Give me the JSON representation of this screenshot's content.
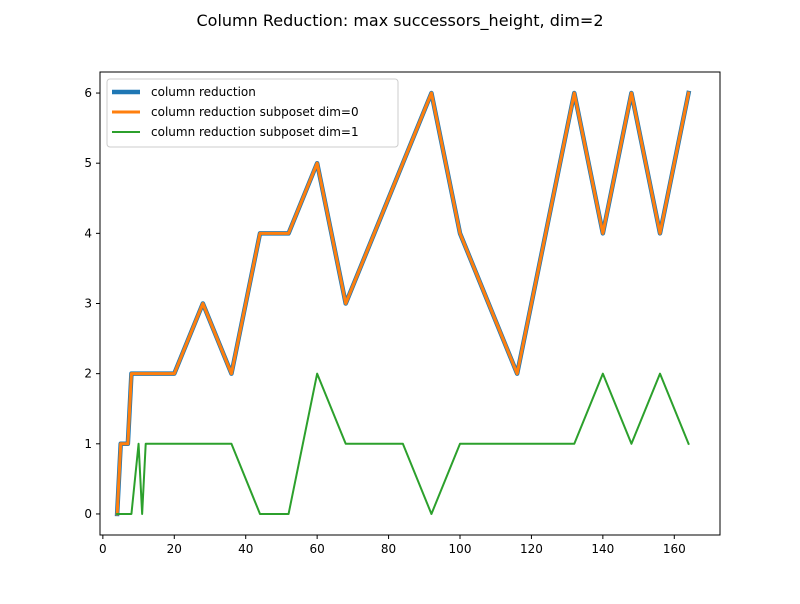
{
  "chart_data": {
    "type": "line",
    "title": "Column Reduction: max successors_height, dim=2",
    "xlabel": "",
    "ylabel": "",
    "xlim": [
      -0.8,
      172.8
    ],
    "ylim": [
      -0.3,
      6.3
    ],
    "xticks": [
      0,
      20,
      40,
      60,
      80,
      100,
      120,
      140,
      160
    ],
    "yticks": [
      0,
      1,
      2,
      3,
      4,
      5,
      6
    ],
    "grid": false,
    "legend": "top-left",
    "series": [
      {
        "name": "column reduction",
        "color": "#1f77b4",
        "width": 4.5,
        "x": [
          4,
          5,
          7,
          8,
          10,
          12,
          20,
          28,
          36,
          44,
          52,
          60,
          68,
          76,
          84,
          92,
          100,
          108,
          116,
          124,
          132,
          140,
          148,
          156,
          164
        ],
        "y": [
          0,
          1,
          1,
          2,
          2,
          2,
          2,
          3,
          2,
          4,
          4,
          5,
          3,
          4,
          5,
          6,
          4,
          3,
          2,
          4,
          6,
          4,
          6,
          4,
          6
        ]
      },
      {
        "name": "column reduction subposet dim=0",
        "color": "#ff7f0e",
        "width": 3,
        "x": [
          4,
          5,
          7,
          8,
          10,
          12,
          20,
          28,
          36,
          44,
          52,
          60,
          68,
          76,
          84,
          92,
          100,
          108,
          116,
          124,
          132,
          140,
          148,
          156,
          164
        ],
        "y": [
          0,
          1,
          1,
          2,
          2,
          2,
          2,
          3,
          2,
          4,
          4,
          5,
          3,
          4,
          5,
          6,
          4,
          3,
          2,
          4,
          6,
          4,
          6,
          4,
          6
        ]
      },
      {
        "name": "column reduction subposet dim=1",
        "color": "#2ca02c",
        "width": 2,
        "x": [
          4,
          5,
          7,
          8,
          10,
          11,
          12,
          20,
          28,
          36,
          44,
          52,
          60,
          68,
          76,
          84,
          92,
          100,
          108,
          116,
          124,
          132,
          140,
          148,
          156,
          164
        ],
        "y": [
          0,
          0,
          0,
          0,
          1,
          0,
          1,
          1,
          1,
          1,
          0,
          0,
          2,
          1,
          1,
          1,
          0,
          1,
          1,
          1,
          1,
          1,
          2,
          1,
          2,
          1
        ]
      }
    ]
  }
}
